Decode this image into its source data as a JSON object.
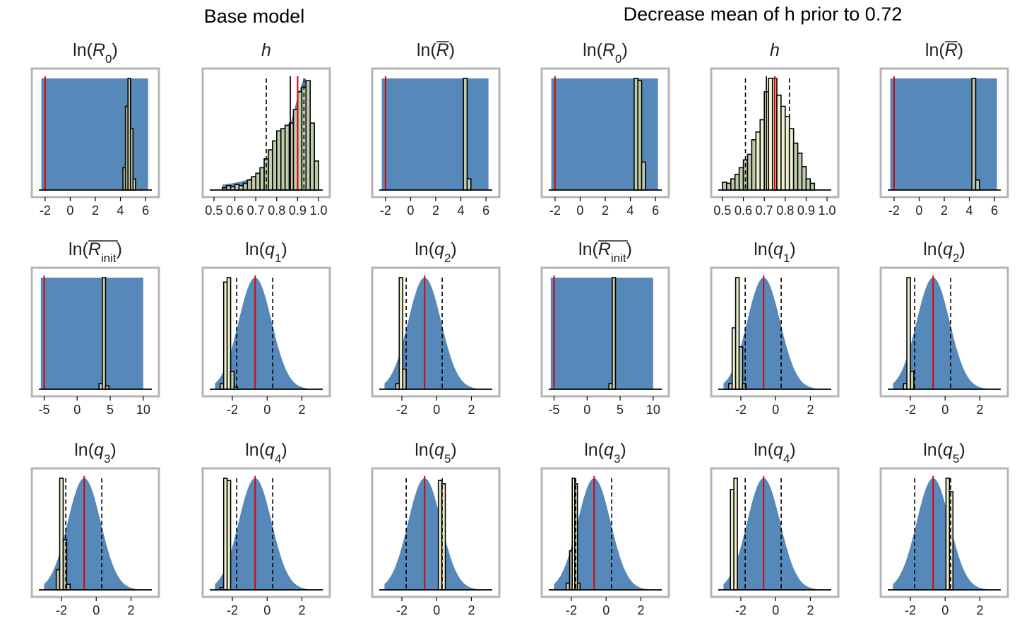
{
  "headers": {
    "left": "Base model",
    "right": "Decrease mean of h prior to 0.72"
  },
  "colors": {
    "prior_fill": "#5689b9",
    "posterior_bar": "#c1ccad",
    "posterior_bar_light": "#eef0cf",
    "true_value_line": "#dd0000",
    "frame": "#b4b4b4",
    "axis": "#000000"
  },
  "chart_data": [
    {
      "type": "bar",
      "panel": "base-lnR0",
      "title": "ln(R0)",
      "xlim": [
        -2.5,
        6.5
      ],
      "xticks": [
        -2,
        0,
        2,
        4,
        6
      ],
      "prior": {
        "kind": "uniform",
        "min": -2.3,
        "max": 6.2
      },
      "red_line": -2.0,
      "dashed_lines": [],
      "solid_lines": [],
      "bins": [
        [
          4.2,
          4.4,
          0.2
        ],
        [
          4.4,
          4.6,
          0.75
        ],
        [
          4.6,
          4.8,
          1.0
        ],
        [
          4.8,
          5.0,
          0.55
        ],
        [
          5.0,
          5.2,
          0.1
        ]
      ]
    },
    {
      "type": "bar",
      "panel": "base-h",
      "title": "h",
      "xlim": [
        0.48,
        1.02
      ],
      "xticks": [
        0.5,
        0.6,
        0.7,
        0.8,
        0.9,
        1.0
      ],
      "prior": {
        "kind": "skew",
        "mode": 0.94,
        "hi": 0.995,
        "scale": 0.085
      },
      "red_line": 0.9,
      "dashed_lines": [
        0.75,
        0.93
      ],
      "solid_lines": [
        0.865
      ],
      "bins": [
        [
          0.54,
          0.56,
          0.02
        ],
        [
          0.56,
          0.58,
          0.04
        ],
        [
          0.58,
          0.6,
          0.03
        ],
        [
          0.6,
          0.62,
          0.05
        ],
        [
          0.62,
          0.64,
          0.04
        ],
        [
          0.64,
          0.66,
          0.06
        ],
        [
          0.66,
          0.68,
          0.09
        ],
        [
          0.68,
          0.7,
          0.12
        ],
        [
          0.7,
          0.72,
          0.15
        ],
        [
          0.72,
          0.74,
          0.2
        ],
        [
          0.74,
          0.76,
          0.28
        ],
        [
          0.76,
          0.78,
          0.36
        ],
        [
          0.78,
          0.8,
          0.44
        ],
        [
          0.8,
          0.82,
          0.53
        ],
        [
          0.82,
          0.84,
          0.55
        ],
        [
          0.84,
          0.86,
          0.58
        ],
        [
          0.86,
          0.88,
          0.6
        ],
        [
          0.88,
          0.9,
          0.72
        ],
        [
          0.9,
          0.92,
          0.88
        ],
        [
          0.92,
          0.94,
          0.92
        ],
        [
          0.94,
          0.96,
          0.98
        ],
        [
          0.96,
          0.98,
          0.6
        ],
        [
          0.98,
          1.0,
          0.26
        ]
      ]
    },
    {
      "type": "bar",
      "panel": "base-lnRbar",
      "title": "ln(R̄)",
      "xlim": [
        -2.5,
        6.5
      ],
      "xticks": [
        -2,
        0,
        2,
        4,
        6
      ],
      "prior": {
        "kind": "uniform",
        "min": -2.3,
        "max": 6.2
      },
      "red_line": -2.0,
      "dashed_lines": [],
      "solid_lines": [],
      "bins": [
        [
          4.2,
          4.5,
          1.0
        ],
        [
          4.5,
          4.8,
          0.1
        ]
      ]
    },
    {
      "type": "bar",
      "panel": "alt-lnR0",
      "title": "ln(R0)",
      "xlim": [
        -2.5,
        6.5
      ],
      "xticks": [
        -2,
        0,
        2,
        4,
        6
      ],
      "prior": {
        "kind": "uniform",
        "min": -2.3,
        "max": 6.2
      },
      "red_line": -2.0,
      "dashed_lines": [],
      "solid_lines": [],
      "bins": [
        [
          4.3,
          4.6,
          1.0
        ],
        [
          4.6,
          4.9,
          0.98
        ],
        [
          4.9,
          5.2,
          0.25
        ]
      ]
    },
    {
      "type": "bar",
      "panel": "alt-h",
      "title": "h",
      "xlim": [
        0.48,
        1.02
      ],
      "xticks": [
        0.5,
        0.6,
        0.7,
        0.8,
        0.9,
        1.0
      ],
      "prior": {
        "kind": "bell",
        "mean": 0.72,
        "sd": 0.085
      },
      "red_line": 0.75,
      "dashed_lines": [
        0.61,
        0.82
      ],
      "solid_lines": [
        0.71
      ],
      "bins": [
        [
          0.5,
          0.52,
          0.07
        ],
        [
          0.52,
          0.54,
          0.06
        ],
        [
          0.54,
          0.56,
          0.1
        ],
        [
          0.56,
          0.58,
          0.14
        ],
        [
          0.58,
          0.6,
          0.2
        ],
        [
          0.6,
          0.62,
          0.27
        ],
        [
          0.62,
          0.64,
          0.32
        ],
        [
          0.64,
          0.66,
          0.45
        ],
        [
          0.66,
          0.68,
          0.52
        ],
        [
          0.68,
          0.7,
          0.63
        ],
        [
          0.7,
          0.72,
          0.88
        ],
        [
          0.72,
          0.74,
          1.0
        ],
        [
          0.74,
          0.76,
          1.0
        ],
        [
          0.76,
          0.78,
          0.85
        ],
        [
          0.78,
          0.8,
          0.75
        ],
        [
          0.8,
          0.82,
          0.66
        ],
        [
          0.82,
          0.84,
          0.55
        ],
        [
          0.84,
          0.86,
          0.42
        ],
        [
          0.86,
          0.88,
          0.33
        ],
        [
          0.88,
          0.9,
          0.21
        ],
        [
          0.9,
          0.92,
          0.1
        ],
        [
          0.92,
          0.94,
          0.06
        ]
      ]
    },
    {
      "type": "bar",
      "panel": "alt-lnRbar",
      "title": "ln(R̄)",
      "xlim": [
        -2.5,
        6.5
      ],
      "xticks": [
        -2,
        0,
        2,
        4,
        6
      ],
      "prior": {
        "kind": "uniform",
        "min": -2.3,
        "max": 6.2
      },
      "red_line": -2.0,
      "dashed_lines": [],
      "solid_lines": [],
      "bins": [
        [
          4.2,
          4.5,
          1.0
        ],
        [
          4.5,
          4.8,
          0.09
        ]
      ]
    },
    {
      "type": "bar",
      "panel": "base-lnRinit",
      "title": "ln(R̄init)",
      "xlim": [
        -5.8,
        11.3
      ],
      "xticks": [
        -5,
        0,
        5,
        10
      ],
      "prior": {
        "kind": "uniform",
        "min": -5.5,
        "max": 10.0
      },
      "red_line": -5.0,
      "dashed_lines": [],
      "solid_lines": [],
      "bins": [
        [
          3.3,
          3.8,
          0.05
        ],
        [
          3.8,
          4.3,
          1.0
        ],
        [
          4.3,
          4.8,
          0.03
        ]
      ]
    },
    {
      "type": "bar",
      "panel": "base-lnq1",
      "title": "ln(q1)",
      "xlim": [
        -3.3,
        3.2
      ],
      "xticks": [
        -2,
        0,
        2
      ],
      "prior": {
        "kind": "bell",
        "mean": -0.69,
        "sd": 0.95,
        "lo": -3.0,
        "hi": 2.9
      },
      "red_line": -0.69,
      "dashed_lines": [
        -1.75,
        0.32
      ],
      "solid_lines": [],
      "bins": [
        [
          -2.7,
          -2.5,
          0.05
        ],
        [
          -2.5,
          -2.3,
          0.96
        ],
        [
          -2.3,
          -2.1,
          1.0
        ],
        [
          -2.1,
          -1.9,
          0.16
        ],
        [
          -1.9,
          -1.7,
          0.02
        ]
      ]
    },
    {
      "type": "bar",
      "panel": "base-lnq2",
      "title": "ln(q2)",
      "xlim": [
        -3.3,
        3.2
      ],
      "xticks": [
        -2,
        0,
        2
      ],
      "prior": {
        "kind": "bell",
        "mean": -0.69,
        "sd": 0.95,
        "lo": -3.0,
        "hi": 2.9
      },
      "red_line": -0.69,
      "dashed_lines": [
        -1.75,
        0.32
      ],
      "solid_lines": [],
      "bins": [
        [
          -2.35,
          -2.15,
          0.05
        ],
        [
          -2.15,
          -1.95,
          1.0
        ],
        [
          -1.95,
          -1.75,
          0.18
        ]
      ]
    },
    {
      "type": "bar",
      "panel": "alt-lnRinit",
      "title": "ln(R̄init)",
      "xlim": [
        -5.8,
        11.3
      ],
      "xticks": [
        -5,
        0,
        5,
        10
      ],
      "prior": {
        "kind": "uniform",
        "min": -5.5,
        "max": 10.0
      },
      "red_line": -5.0,
      "dashed_lines": [],
      "solid_lines": [],
      "bins": [
        [
          3.3,
          3.8,
          0.05
        ],
        [
          3.8,
          4.3,
          1.0
        ]
      ]
    },
    {
      "type": "bar",
      "panel": "alt-lnq1",
      "title": "ln(q1)",
      "xlim": [
        -3.3,
        3.2
      ],
      "xticks": [
        -2,
        0,
        2
      ],
      "prior": {
        "kind": "bell",
        "mean": -0.69,
        "sd": 0.95,
        "lo": -3.0,
        "hi": 2.9
      },
      "red_line": -0.69,
      "dashed_lines": [
        -1.75,
        0.32
      ],
      "solid_lines": [],
      "bins": [
        [
          -2.7,
          -2.5,
          0.05
        ],
        [
          -2.5,
          -2.3,
          0.55
        ],
        [
          -2.3,
          -2.1,
          1.0
        ],
        [
          -2.1,
          -1.9,
          0.38
        ],
        [
          -1.9,
          -1.7,
          0.05
        ]
      ]
    },
    {
      "type": "bar",
      "panel": "alt-lnq2",
      "title": "ln(q2)",
      "xlim": [
        -3.3,
        3.2
      ],
      "xticks": [
        -2,
        0,
        2
      ],
      "prior": {
        "kind": "bell",
        "mean": -0.69,
        "sd": 0.95,
        "lo": -3.0,
        "hi": 2.9
      },
      "red_line": -0.69,
      "dashed_lines": [
        -1.75,
        0.32
      ],
      "solid_lines": [],
      "bins": [
        [
          -2.4,
          -2.2,
          0.05
        ],
        [
          -2.2,
          -2.0,
          1.0
        ],
        [
          -2.0,
          -1.8,
          0.16
        ]
      ]
    },
    {
      "type": "bar",
      "panel": "base-lnq3",
      "title": "ln(q3)",
      "xlim": [
        -3.3,
        3.2
      ],
      "xticks": [
        -2,
        0,
        2
      ],
      "prior": {
        "kind": "bell",
        "mean": -0.69,
        "sd": 0.95,
        "lo": -3.0,
        "hi": 2.9
      },
      "red_line": -0.69,
      "dashed_lines": [
        -1.75,
        0.32
      ],
      "solid_lines": [],
      "bins": [
        [
          -2.3,
          -2.1,
          0.18
        ],
        [
          -2.1,
          -1.9,
          1.0
        ],
        [
          -1.9,
          -1.7,
          0.45
        ],
        [
          -1.7,
          -1.5,
          0.05
        ]
      ]
    },
    {
      "type": "bar",
      "panel": "base-lnq4",
      "title": "ln(q4)",
      "xlim": [
        -3.3,
        3.2
      ],
      "xticks": [
        -2,
        0,
        2
      ],
      "prior": {
        "kind": "bell",
        "mean": -0.69,
        "sd": 0.95,
        "lo": -3.0,
        "hi": 2.9
      },
      "red_line": -0.69,
      "dashed_lines": [
        -1.75,
        0.32
      ],
      "solid_lines": [],
      "bins": [
        [
          -2.7,
          -2.5,
          0.02
        ],
        [
          -2.5,
          -2.3,
          1.0
        ],
        [
          -2.3,
          -2.1,
          0.98
        ]
      ]
    },
    {
      "type": "bar",
      "panel": "base-lnq5",
      "title": "ln(q5)",
      "xlim": [
        -3.3,
        3.2
      ],
      "xticks": [
        -2,
        0,
        2
      ],
      "prior": {
        "kind": "bell",
        "mean": -0.69,
        "sd": 0.95,
        "lo": -3.0,
        "hi": 2.9
      },
      "red_line": -0.69,
      "dashed_lines": [
        -1.75,
        0.32
      ],
      "solid_lines": [],
      "bins": [
        [
          0.1,
          0.3,
          0.98
        ],
        [
          0.3,
          0.5,
          0.95
        ]
      ]
    },
    {
      "type": "bar",
      "panel": "alt-lnq3",
      "title": "ln(q3)",
      "xlim": [
        -3.3,
        3.2
      ],
      "xticks": [
        -2,
        0,
        2
      ],
      "prior": {
        "kind": "bell",
        "mean": -0.69,
        "sd": 0.95,
        "lo": -3.0,
        "hi": 2.9
      },
      "red_line": -0.69,
      "dashed_lines": [
        -1.75,
        0.32
      ],
      "solid_lines": [],
      "bins": [
        [
          -2.3,
          -2.1,
          0.06
        ],
        [
          -2.1,
          -1.95,
          0.35
        ],
        [
          -1.95,
          -1.8,
          1.0
        ],
        [
          -1.8,
          -1.65,
          0.95
        ],
        [
          -1.65,
          -1.5,
          0.06
        ]
      ]
    },
    {
      "type": "bar",
      "panel": "alt-lnq4",
      "title": "ln(q4)",
      "xlim": [
        -3.3,
        3.2
      ],
      "xticks": [
        -2,
        0,
        2
      ],
      "prior": {
        "kind": "bell",
        "mean": -0.69,
        "sd": 0.95,
        "lo": -3.0,
        "hi": 2.9
      },
      "red_line": -0.69,
      "dashed_lines": [
        -1.75,
        0.32
      ],
      "solid_lines": [],
      "bins": [
        [
          -2.6,
          -2.4,
          0.9
        ],
        [
          -2.4,
          -2.2,
          1.0
        ]
      ]
    },
    {
      "type": "bar",
      "panel": "alt-lnq5",
      "title": "ln(q5)",
      "xlim": [
        -3.3,
        3.2
      ],
      "xticks": [
        -2,
        0,
        2
      ],
      "prior": {
        "kind": "bell",
        "mean": -0.69,
        "sd": 0.95,
        "lo": -3.0,
        "hi": 2.9
      },
      "red_line": -0.69,
      "dashed_lines": [
        -1.75,
        0.32
      ],
      "solid_lines": [],
      "bins": [
        [
          0.05,
          0.25,
          1.0
        ],
        [
          0.25,
          0.45,
          0.88
        ]
      ]
    }
  ],
  "titles": [
    {
      "base": "ln(",
      "sym": "R",
      "sub": "0",
      "bar": false,
      "close": ")"
    },
    {
      "base": "",
      "sym": "h",
      "sub": "",
      "bar": false,
      "close": ""
    },
    {
      "base": "ln(",
      "sym": "R",
      "sub": "",
      "bar": true,
      "close": ")"
    },
    {
      "base": "ln(",
      "sym": "R",
      "sub": "0",
      "bar": false,
      "close": ")"
    },
    {
      "base": "",
      "sym": "h",
      "sub": "",
      "bar": false,
      "close": ""
    },
    {
      "base": "ln(",
      "sym": "R",
      "sub": "",
      "bar": true,
      "close": ")"
    },
    {
      "base": "ln(",
      "sym": "R",
      "sub": "init",
      "bar": true,
      "close": ")"
    },
    {
      "base": "ln(",
      "sym": "q",
      "sub": "1",
      "bar": false,
      "close": ")"
    },
    {
      "base": "ln(",
      "sym": "q",
      "sub": "2",
      "bar": false,
      "close": ")"
    },
    {
      "base": "ln(",
      "sym": "R",
      "sub": "init",
      "bar": true,
      "close": ")"
    },
    {
      "base": "ln(",
      "sym": "q",
      "sub": "1",
      "bar": false,
      "close": ")"
    },
    {
      "base": "ln(",
      "sym": "q",
      "sub": "2",
      "bar": false,
      "close": ")"
    },
    {
      "base": "ln(",
      "sym": "q",
      "sub": "3",
      "bar": false,
      "close": ")"
    },
    {
      "base": "ln(",
      "sym": "q",
      "sub": "4",
      "bar": false,
      "close": ")"
    },
    {
      "base": "ln(",
      "sym": "q",
      "sub": "5",
      "bar": false,
      "close": ")"
    },
    {
      "base": "ln(",
      "sym": "q",
      "sub": "3",
      "bar": false,
      "close": ")"
    },
    {
      "base": "ln(",
      "sym": "q",
      "sub": "4",
      "bar": false,
      "close": ")"
    },
    {
      "base": "ln(",
      "sym": "q",
      "sub": "5",
      "bar": false,
      "close": ")"
    }
  ]
}
